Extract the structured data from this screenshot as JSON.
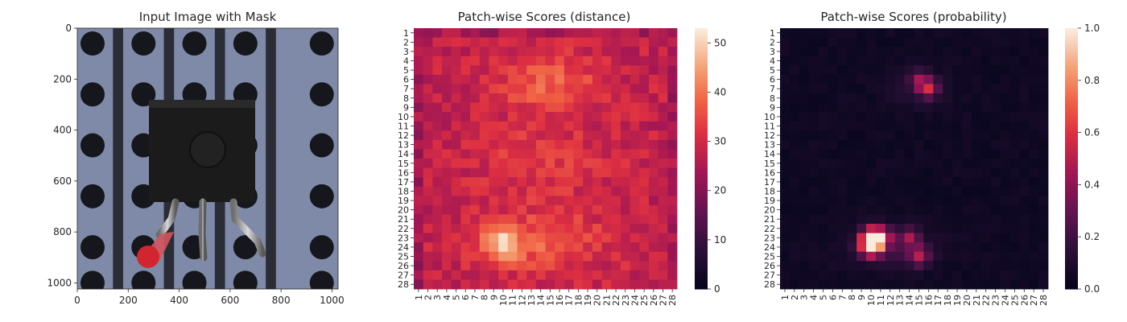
{
  "chart_data": [
    {
      "type": "image",
      "title": "Input Image with Mask",
      "x_ticks": [
        "0",
        "200",
        "400",
        "600",
        "800",
        "1000"
      ],
      "y_ticks": [
        "0",
        "200",
        "400",
        "600",
        "800",
        "1000"
      ],
      "xlim": [
        0,
        1024
      ],
      "ylim": [
        1024,
        0
      ],
      "description_colors": {
        "background": "#7f8aa8",
        "stripe": "#2a2c36",
        "hole": "#15171c",
        "component": "#1b1b1b",
        "mask": "#d2252f"
      }
    },
    {
      "type": "heatmap",
      "title": "Patch-wise Scores (distance)",
      "rows": [
        "1",
        "2",
        "3",
        "4",
        "5",
        "6",
        "7",
        "8",
        "9",
        "10",
        "11",
        "12",
        "13",
        "14",
        "15",
        "16",
        "17",
        "18",
        "19",
        "20",
        "21",
        "22",
        "23",
        "24",
        "25",
        "26",
        "27",
        "28"
      ],
      "cols": [
        "1",
        "2",
        "3",
        "4",
        "5",
        "6",
        "7",
        "8",
        "9",
        "10",
        "11",
        "12",
        "13",
        "14",
        "15",
        "16",
        "17",
        "18",
        "19",
        "20",
        "21",
        "22",
        "23",
        "24",
        "25",
        "26",
        "27",
        "28"
      ],
      "colorbar_ticks": [
        "0",
        "10",
        "20",
        "30",
        "40",
        "50"
      ],
      "vmin": 0,
      "vmax": 53,
      "colormap": "rocket",
      "regions": [
        {
          "name": "background",
          "value": 31
        },
        {
          "name": "upper-blob",
          "center_row": 6.5,
          "center_col": 15,
          "value": 41
        },
        {
          "name": "lower-blob",
          "center_row": 23.5,
          "center_col": 10,
          "value": 53
        }
      ]
    },
    {
      "type": "heatmap",
      "title": "Patch-wise Scores (probability)",
      "rows": [
        "1",
        "2",
        "3",
        "4",
        "5",
        "6",
        "7",
        "8",
        "9",
        "10",
        "11",
        "12",
        "13",
        "14",
        "15",
        "16",
        "17",
        "18",
        "19",
        "20",
        "21",
        "22",
        "23",
        "24",
        "25",
        "26",
        "27",
        "28"
      ],
      "cols": [
        "1",
        "2",
        "3",
        "4",
        "5",
        "6",
        "7",
        "8",
        "9",
        "10",
        "11",
        "12",
        "13",
        "14",
        "15",
        "16",
        "17",
        "18",
        "19",
        "20",
        "21",
        "22",
        "23",
        "24",
        "25",
        "26",
        "27",
        "28"
      ],
      "colorbar_ticks": [
        "0.0",
        "0.2",
        "0.4",
        "0.6",
        "0.8",
        "1.0"
      ],
      "vmin": 0.0,
      "vmax": 1.0,
      "colormap": "rocket",
      "hotspots": [
        {
          "row": 7,
          "col": 16,
          "value": 0.5
        },
        {
          "row": 6,
          "col": 15,
          "value": 0.35
        },
        {
          "row": 23,
          "col": 10,
          "value": 1.0
        },
        {
          "row": 24,
          "col": 10,
          "value": 0.95
        },
        {
          "row": 23,
          "col": 11,
          "value": 0.75
        },
        {
          "row": 25,
          "col": 15,
          "value": 0.45
        },
        {
          "row": 23,
          "col": 14,
          "value": 0.35
        }
      ]
    }
  ]
}
